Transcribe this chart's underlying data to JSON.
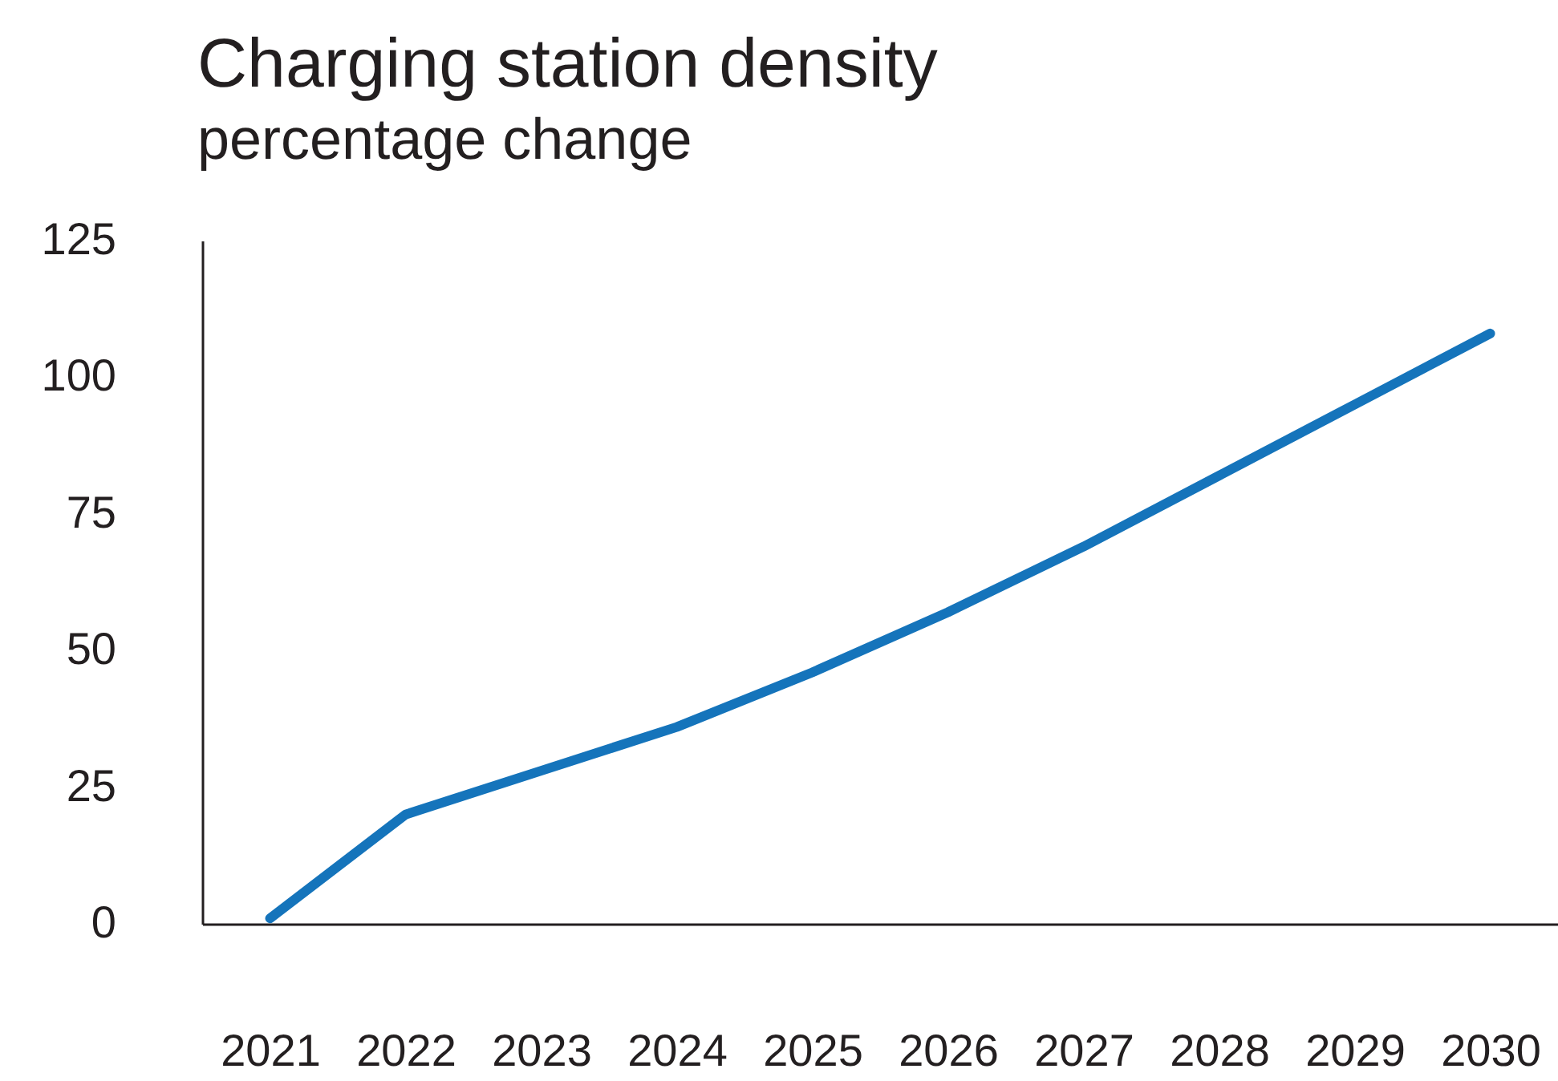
{
  "chart_data": {
    "type": "line",
    "title": "Charging station density",
    "subtitle": "percentage change",
    "categories": [
      "2021",
      "2022",
      "2023",
      "2024",
      "2025",
      "2026",
      "2027",
      "2028",
      "2029",
      "2030"
    ],
    "series": [
      {
        "color": "#1574bb",
        "values": [
          1,
          20,
          28,
          36,
          46,
          57,
          69,
          82,
          95,
          108
        ]
      }
    ],
    "ylim": [
      0,
      125
    ],
    "yticks": [
      0,
      25,
      50,
      75,
      100,
      125
    ],
    "grid": false
  }
}
